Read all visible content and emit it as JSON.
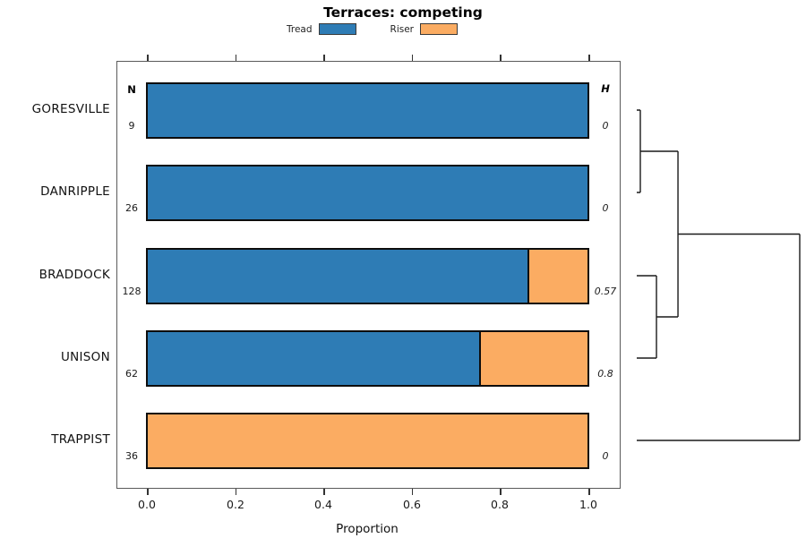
{
  "chart_data": {
    "type": "bar",
    "orientation": "horizontal-stacked",
    "title": "Terraces: competing",
    "xlabel": "Proportion",
    "xlim": [
      0,
      1
    ],
    "x_ticks": [
      0.0,
      0.2,
      0.4,
      0.6,
      0.8,
      1.0
    ],
    "x_tick_labels": [
      "0.0",
      "0.2",
      "0.4",
      "0.6",
      "0.8",
      "1.0"
    ],
    "grid": "off",
    "legend_position": "top",
    "legend": [
      {
        "label": "Tread",
        "color": "#2e7cb5"
      },
      {
        "label": "Riser",
        "color": "#fbac62"
      }
    ],
    "columns": {
      "n_header": "N",
      "h_header": "H"
    },
    "rows": [
      {
        "label": "GORESVILLE",
        "n": "9",
        "h": "0",
        "tread": 1.0,
        "riser": 0.0
      },
      {
        "label": "DANRIPPLE",
        "n": "26",
        "h": "0",
        "tread": 1.0,
        "riser": 0.0
      },
      {
        "label": "BRADDOCK",
        "n": "128",
        "h": "0.57",
        "tread": 0.867,
        "riser": 0.133
      },
      {
        "label": "UNISON",
        "n": "62",
        "h": "0.8",
        "tread": 0.758,
        "riser": 0.242
      },
      {
        "label": "TRAPPIST",
        "n": "36",
        "h": "0",
        "tread": 0.0,
        "riser": 1.0
      }
    ],
    "colors": {
      "bar_border": "#0d0d0d",
      "dendrogram_line": "#1a1a1a",
      "axis": "#333333"
    },
    "dendrogram": {
      "leaf_order": [
        "GORESVILLE",
        "DANRIPPLE",
        "BRADDOCK",
        "UNISON",
        "TRAPPIST"
      ],
      "merges": [
        {
          "children": [
            0,
            1
          ],
          "height": 0.022
        },
        {
          "children": [
            2,
            3
          ],
          "height": 0.121
        },
        {
          "children": [
            "m0",
            "m1"
          ],
          "height": 0.253
        },
        {
          "children": [
            "m2",
            4
          ],
          "height": 1.0
        }
      ]
    }
  }
}
